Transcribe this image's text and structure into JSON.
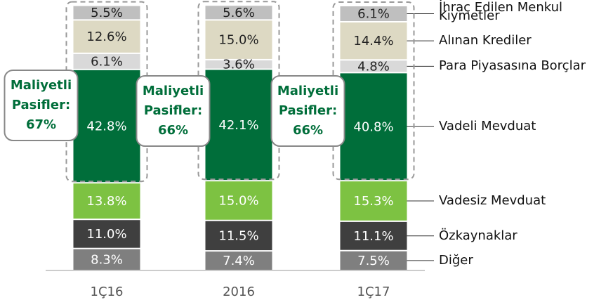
{
  "chart_data": {
    "type": "stacked_bar",
    "categories": [
      "1Ç16",
      "2016",
      "1Ç17"
    ],
    "ylim": [
      0,
      100
    ],
    "series": [
      {
        "name": "Diğer",
        "color": "#7f7f7f",
        "label_color": "#ffffff",
        "values": [
          8.3,
          7.4,
          7.5
        ],
        "value_labels": [
          "8.3%",
          "7.4%",
          "7.5%"
        ]
      },
      {
        "name": "Özkaynaklar",
        "color": "#3f3f3f",
        "label_color": "#ffffff",
        "values": [
          11.0,
          11.5,
          11.1
        ],
        "value_labels": [
          "11.0%",
          "11.5%",
          "11.1%"
        ]
      },
      {
        "name": "Vadesiz Mevduat",
        "color": "#7dc242",
        "label_color": "#ffffff",
        "values": [
          13.8,
          15.0,
          15.3
        ],
        "value_labels": [
          "13.8%",
          "15.0%",
          "15.3%"
        ]
      },
      {
        "name": "Vadeli Mevduat",
        "color": "#006e3a",
        "label_color": "#ffffff",
        "values": [
          42.8,
          42.1,
          40.8
        ],
        "value_labels": [
          "42.8%",
          "42.1%",
          "40.8%"
        ]
      },
      {
        "name": "Para Piyasasına Borçlar",
        "color": "#d9d9d9",
        "label_color": "#222222",
        "values": [
          6.1,
          3.6,
          4.8
        ],
        "value_labels": [
          "6.1%",
          "3.6%",
          "4.8%"
        ]
      },
      {
        "name": "Alınan Krediler",
        "color": "#ddd9c3",
        "label_color": "#222222",
        "values": [
          12.6,
          15.0,
          14.4
        ],
        "value_labels": [
          "12.6%",
          "15.0%",
          "14.4%"
        ]
      },
      {
        "name": "İhraç Edilen Menkul Kıymetler",
        "color": "#bfbfbf",
        "label_color": "#222222",
        "values": [
          5.5,
          5.6,
          6.1
        ],
        "value_labels": [
          "5.5%",
          "5.6%",
          "6.1%"
        ]
      }
    ],
    "callouts": [
      {
        "lines": [
          "Maliyetli",
          "Pasifler:"
        ],
        "value": 67,
        "value_label": "67%"
      },
      {
        "lines": [
          "Maliyetli",
          "Pasifler:"
        ],
        "value": 66,
        "value_label": "66%"
      },
      {
        "lines": [
          "Maliyetli",
          "Pasifler:"
        ],
        "value": 66,
        "value_label": "66%"
      }
    ],
    "callout_color": "#006e3a"
  }
}
